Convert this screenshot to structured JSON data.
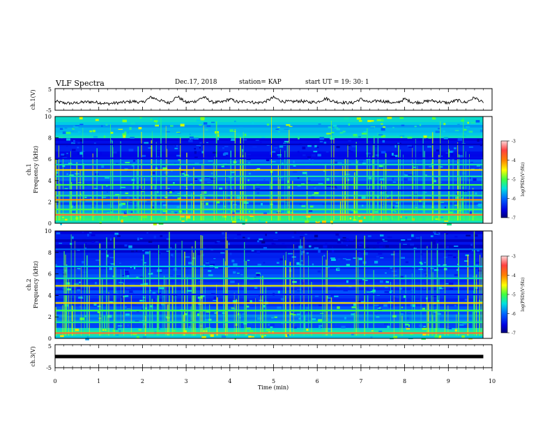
{
  "header": {
    "title": "VLF Spectra",
    "date": "Dec.17, 2018",
    "station": "station= KAP",
    "start": "start  UT =   19: 30: 1"
  },
  "chart_data": [
    {
      "type": "line",
      "panel": "ch1-waveform",
      "ylabel": "ch.1(V)",
      "ylim": [
        -5,
        5
      ],
      "yticks": [
        5,
        -5
      ],
      "xlim": [
        0,
        10
      ],
      "x": [
        0.0,
        0.2,
        0.4,
        0.6,
        0.8,
        1.0,
        1.2,
        1.4,
        1.6,
        1.8,
        2.0,
        2.2,
        2.4,
        2.6,
        2.8,
        3.0,
        3.2,
        3.4,
        3.6,
        3.8,
        4.0,
        4.2,
        4.4,
        4.6,
        4.8,
        5.0,
        5.2,
        5.4,
        5.6,
        5.8,
        6.0,
        6.2,
        6.4,
        6.6,
        6.8,
        7.0,
        7.2,
        7.4,
        7.6,
        7.8,
        8.0,
        8.2,
        8.4,
        8.6,
        8.8,
        9.0,
        9.2,
        9.4,
        9.6,
        9.8
      ],
      "y": [
        -1.0,
        -1.8,
        -2.0,
        -1.5,
        -1.2,
        -1.6,
        -2.2,
        -1.8,
        -1.4,
        -1.0,
        -1.6,
        1.2,
        -0.5,
        -1.8,
        1.5,
        -1.6,
        -1.0,
        1.2,
        -1.4,
        -1.5,
        0.2,
        -1.5,
        -0.8,
        -1.8,
        -1.2,
        1.0,
        -1.0,
        -1.2,
        -0.8,
        -1.4,
        -1.3,
        0.5,
        -1.2,
        -1.6,
        -1.8,
        0.2,
        -1.6,
        -0.6,
        -1.2,
        -2.0,
        0.2,
        -1.6,
        -1.4,
        -0.6,
        -1.2,
        -1.8,
        -0.4,
        -1.6,
        1.0,
        -1.8
      ]
    },
    {
      "type": "heatmap",
      "panel": "ch1-spectrogram",
      "ylabel": "ch.1\nFrequency (kHz)",
      "ylim": [
        0,
        10
      ],
      "yticks": [
        0,
        2,
        4,
        6,
        8,
        10
      ],
      "xlim": [
        0,
        10
      ],
      "colorbar": {
        "label": "log(PSD)(V²/Hz)",
        "range": [
          -7,
          -3
        ],
        "ticks": [
          -3,
          -4,
          -5,
          -6,
          -7
        ]
      },
      "bands_khz": [
        {
          "f": 0.8,
          "level": -3.3
        },
        {
          "f": 1.3,
          "level": -4.6
        },
        {
          "f": 2.2,
          "level": -3.6
        },
        {
          "f": 2.6,
          "level": -4.8
        },
        {
          "f": 3.1,
          "level": -6.5
        },
        {
          "f": 3.6,
          "level": -4.6
        },
        {
          "f": 4.4,
          "level": -4.9
        },
        {
          "f": 5.0,
          "level": -3.8
        },
        {
          "f": 5.5,
          "level": -4.9
        },
        {
          "f": 6.1,
          "level": -6.4
        },
        {
          "f": 7.4,
          "level": -6.6
        }
      ],
      "background_level_by_freq": {
        "0-1": -4.8,
        "1-3": -5.6,
        "3-6": -5.8,
        "6-8": -6.3,
        "8-10": -5.2
      }
    },
    {
      "type": "heatmap",
      "panel": "ch2-spectrogram",
      "ylabel": "ch.2\nFrequency (kHz)",
      "ylim": [
        0,
        10
      ],
      "yticks": [
        0,
        2,
        4,
        6,
        8,
        10
      ],
      "xlim": [
        0,
        10
      ],
      "colorbar": {
        "label": "log(PSD)(V²/Hz)",
        "range": [
          -7,
          -3
        ],
        "ticks": [
          -3,
          -4,
          -5,
          -6,
          -7
        ]
      },
      "bands_khz": [
        {
          "f": 0.5,
          "level": -3.3
        },
        {
          "f": 1.5,
          "level": -4.8
        },
        {
          "f": 2.6,
          "level": -4.6
        },
        {
          "f": 3.3,
          "level": -3.8
        },
        {
          "f": 4.1,
          "level": -6.3
        },
        {
          "f": 4.9,
          "level": -3.9
        },
        {
          "f": 5.6,
          "level": -4.9
        },
        {
          "f": 6.7,
          "level": -5.1
        },
        {
          "f": 8.3,
          "level": -5.6
        }
      ],
      "background_level_by_freq": {
        "0-1": -5.0,
        "1-3": -5.6,
        "3-6": -5.9,
        "6-8": -6.0,
        "8-10": -6.4
      }
    },
    {
      "type": "line",
      "panel": "ch3-waveform",
      "ylabel": "ch.3(V)",
      "ylim": [
        -5,
        5
      ],
      "yticks": [
        5,
        -5
      ],
      "xlim": [
        0,
        10
      ],
      "x": [
        0,
        9.8
      ],
      "y": [
        0,
        0
      ]
    }
  ],
  "x_axis": {
    "label": "Time  (min)",
    "ticks": [
      "0",
      "1",
      "2",
      "3",
      "4",
      "5",
      "6",
      "7",
      "8",
      "9",
      "10"
    ]
  },
  "colors": {
    "waveform": "#000000",
    "colormap": [
      "#00007a",
      "#0000ff",
      "#00c8ff",
      "#00ff88",
      "#80ff00",
      "#ffff00",
      "#ff8000",
      "#ff0000",
      "#ffc8c8"
    ]
  }
}
